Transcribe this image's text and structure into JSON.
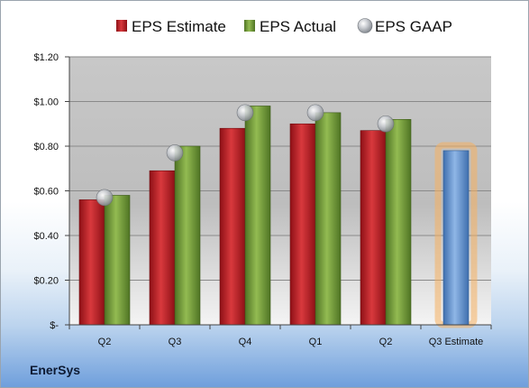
{
  "chart_data": {
    "type": "bar",
    "categories": [
      "Q2",
      "Q3",
      "Q4",
      "Q1",
      "Q2",
      "Q3 Estimate"
    ],
    "series": [
      {
        "name": "EPS Estimate",
        "values": [
          0.56,
          0.69,
          0.88,
          0.9,
          0.87,
          null
        ]
      },
      {
        "name": "EPS Actual",
        "values": [
          0.58,
          0.8,
          0.98,
          0.95,
          0.92,
          null
        ]
      },
      {
        "name": "EPS GAAP",
        "values": [
          0.57,
          0.77,
          0.95,
          0.95,
          0.9,
          null
        ]
      }
    ],
    "estimate_bar": {
      "category": "Q3 Estimate",
      "value": 0.78
    },
    "y_ticks": [
      {
        "value": 0,
        "label": "$-"
      },
      {
        "value": 0.2,
        "label": "$0.20"
      },
      {
        "value": 0.4,
        "label": "$0.40"
      },
      {
        "value": 0.6,
        "label": "$0.60"
      },
      {
        "value": 0.8,
        "label": "$0.80"
      },
      {
        "value": 1.0,
        "label": "$1.00"
      },
      {
        "value": 1.2,
        "label": "$1.20"
      }
    ],
    "ylim": [
      0,
      1.2
    ],
    "grid": true,
    "legend_placement": "top",
    "company": "EnerSys",
    "colors": {
      "estimate": "#c0282d",
      "actual": "#77a03c",
      "gaap": "#b8bcc2",
      "future": "#6f9fd6",
      "future_glow": "#f5b060"
    }
  }
}
